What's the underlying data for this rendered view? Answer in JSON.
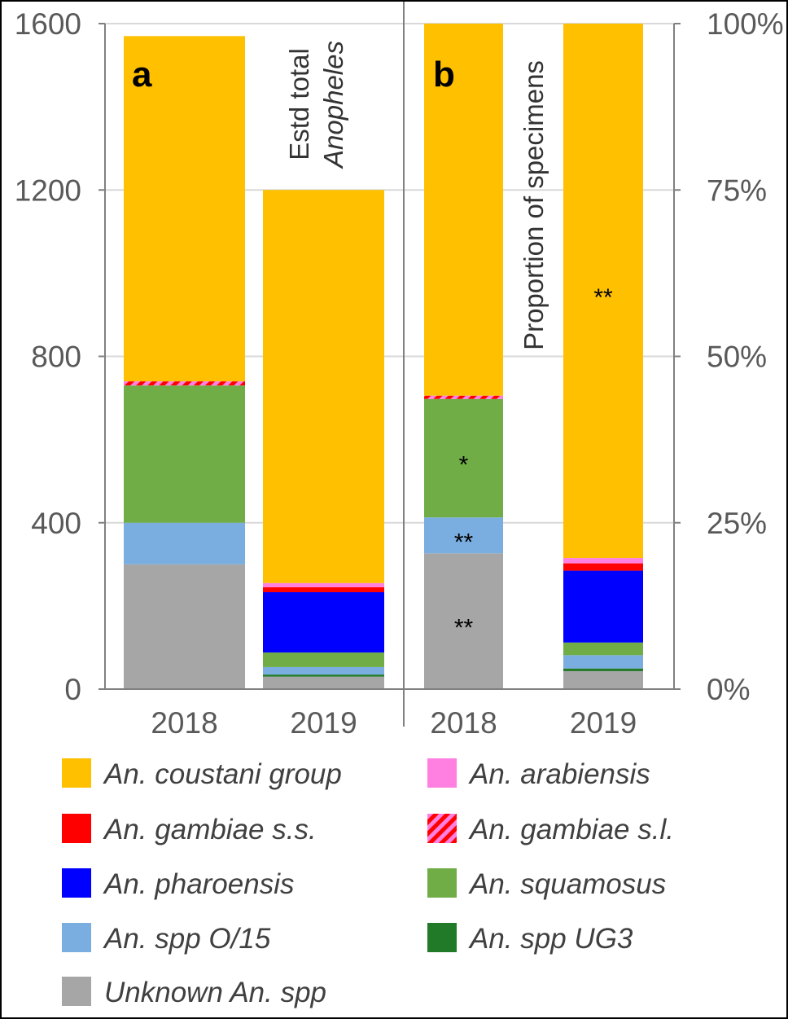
{
  "chart_data": [
    {
      "panel": "a",
      "type": "bar",
      "stacked": true,
      "ylabel": "Estd total",
      "ylabel_species": "Anopheles",
      "ylim": [
        0,
        1600
      ],
      "yticks": [
        "0",
        "400",
        "800",
        "1200",
        "1600"
      ],
      "yticks_values": [
        0,
        400,
        800,
        1200,
        1600
      ],
      "categories": [
        "2018",
        "2019"
      ],
      "series": [
        {
          "name": "Unknown An. spp",
          "key": "unknown",
          "values": [
            300,
            30
          ]
        },
        {
          "name": "An. spp UG3",
          "key": "ug3",
          "values": [
            0,
            5
          ]
        },
        {
          "name": "An. spp O/15",
          "key": "o15",
          "values": [
            100,
            18
          ]
        },
        {
          "name": "An. squamosus",
          "key": "squamosus",
          "values": [
            330,
            35
          ]
        },
        {
          "name": "An. pharoensis",
          "key": "pharoensis",
          "values": [
            0,
            145
          ]
        },
        {
          "name": "An. gambiae s.s.",
          "key": "gambiae_ss",
          "values": [
            0,
            12
          ]
        },
        {
          "name": "An. gambiae s.l.",
          "key": "gambiae_sl",
          "values": [
            10,
            0
          ]
        },
        {
          "name": "An. arabiensis",
          "key": "arabiensis",
          "values": [
            0,
            10
          ]
        },
        {
          "name": "An. coustani group",
          "key": "coustani",
          "values": [
            830,
            945
          ]
        }
      ],
      "annotations": []
    },
    {
      "panel": "b",
      "type": "bar",
      "stacked": true,
      "ylabel": "Proportion of specimens",
      "ylim": [
        0,
        100
      ],
      "yticks": [
        "0%",
        "25%",
        "50%",
        "75%",
        "100%"
      ],
      "yticks_values": [
        0,
        25,
        50,
        75,
        100
      ],
      "categories": [
        "2018",
        "2019"
      ],
      "series": [
        {
          "name": "Unknown An. spp",
          "key": "unknown",
          "values": [
            20.4,
            2.7
          ]
        },
        {
          "name": "An. spp UG3",
          "key": "ug3",
          "values": [
            0,
            0.4
          ]
        },
        {
          "name": "An. spp O/15",
          "key": "o15",
          "values": [
            5.4,
            2.0
          ]
        },
        {
          "name": "An. squamosus",
          "key": "squamosus",
          "values": [
            17.8,
            1.9
          ]
        },
        {
          "name": "An. pharoensis",
          "key": "pharoensis",
          "values": [
            0,
            10.8
          ]
        },
        {
          "name": "An. gambiae s.s.",
          "key": "gambiae_ss",
          "values": [
            0,
            1.1
          ]
        },
        {
          "name": "An. gambiae s.l.",
          "key": "gambiae_sl",
          "values": [
            0.5,
            0
          ]
        },
        {
          "name": "An. arabiensis",
          "key": "arabiensis",
          "values": [
            0,
            0.8
          ]
        },
        {
          "name": "An. coustani group",
          "key": "coustani",
          "values": [
            55.9,
            80.3
          ]
        }
      ],
      "annotations": [
        {
          "category": "2018",
          "series": "unknown",
          "text": "**"
        },
        {
          "category": "2018",
          "series": "o15",
          "text": "**"
        },
        {
          "category": "2018",
          "series": "squamosus",
          "text": "*"
        },
        {
          "category": "2019",
          "series": "coustani",
          "text": "**"
        }
      ]
    }
  ],
  "legend": [
    {
      "label": "An. coustani group",
      "key": "coustani",
      "column": 0
    },
    {
      "label": "An. arabiensis",
      "key": "arabiensis",
      "column": 1
    },
    {
      "label": "An. gambiae s.s.",
      "key": "gambiae_ss",
      "column": 0
    },
    {
      "label": "An. gambiae s.l.",
      "key": "gambiae_sl",
      "column": 1
    },
    {
      "label": "An. pharoensis",
      "key": "pharoensis",
      "column": 0
    },
    {
      "label": "An. squamosus",
      "key": "squamosus",
      "column": 1
    },
    {
      "label": "An. spp O/15",
      "key": "o15",
      "column": 0
    },
    {
      "label": "An. spp UG3",
      "key": "ug3",
      "column": 1
    },
    {
      "label": "Unknown An. spp",
      "key": "unknown",
      "column": 0
    }
  ],
  "colors": {
    "coustani": "#FFC000",
    "arabiensis": "#FF80E0",
    "gambiae_ss": "#FF0000",
    "gambiae_sl": "striped:#FF0000/#FF80E0",
    "pharoensis": "#0000FF",
    "squamosus": "#70AD47",
    "o15": "#7AAEE0",
    "ug3": "#217A27",
    "unknown": "#A6A6A6",
    "gridline": "#D9D9D9",
    "axis": "#808080"
  }
}
